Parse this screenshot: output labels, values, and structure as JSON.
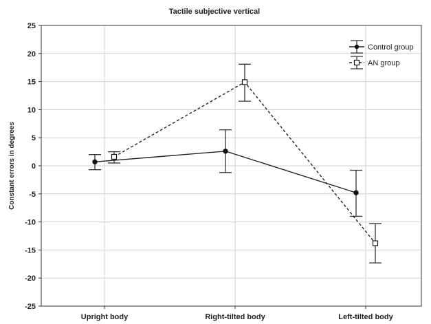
{
  "chart_data": {
    "type": "line",
    "title": "Tactile subjective vertical",
    "xlabel": "",
    "ylabel": "Constant errors in degrees",
    "categories": [
      "Upright body",
      "Right-tilted body",
      "Left-tilted body"
    ],
    "ylim": [
      -25,
      25
    ],
    "yticks": [
      25,
      20,
      15,
      10,
      5,
      0,
      -5,
      -10,
      -15,
      -20,
      -25
    ],
    "grid": true,
    "legend_position": "top-right",
    "series": [
      {
        "name": "Control group",
        "marker": "filled-circle",
        "line": "solid",
        "values": [
          0.7,
          2.6,
          -4.8
        ],
        "error_low": [
          -0.7,
          -1.2,
          -9.0
        ],
        "error_high": [
          2.0,
          6.4,
          -0.8
        ]
      },
      {
        "name": "AN group",
        "marker": "open-square",
        "line": "dashed",
        "values": [
          1.6,
          14.9,
          -13.8
        ],
        "error_low": [
          0.5,
          11.5,
          -17.3
        ],
        "error_high": [
          2.5,
          18.1,
          -10.3
        ]
      }
    ]
  }
}
